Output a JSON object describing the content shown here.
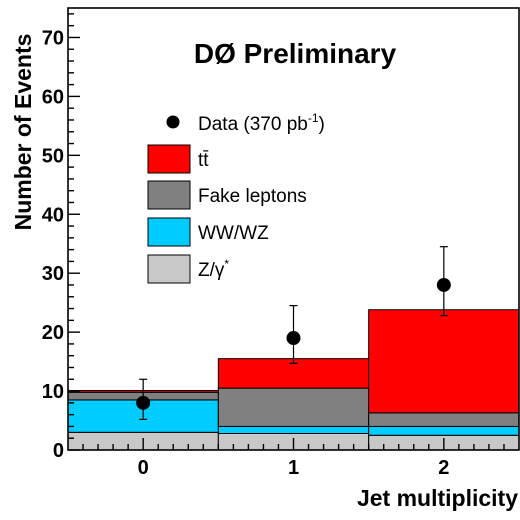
{
  "chart_data": {
    "type": "bar",
    "title": "DØ Preliminary",
    "xlabel": "Jet multiplicity",
    "ylabel": "Number of Events",
    "x": [
      0,
      1,
      2
    ],
    "xlim": [
      -0.5,
      2.5
    ],
    "ylim": [
      0,
      75
    ],
    "xticks": [
      "0",
      "1",
      "2"
    ],
    "yticks": [
      "0",
      "10",
      "20",
      "30",
      "40",
      "50",
      "60",
      "70"
    ],
    "stacked": true,
    "series": [
      {
        "name": "Z/γ*",
        "color": "#c8c8c8",
        "values": [
          3.0,
          2.8,
          2.5
        ]
      },
      {
        "name": "WW/WZ",
        "color": "#00ccff",
        "values": [
          5.5,
          1.2,
          1.5
        ]
      },
      {
        "name": "Fake leptons",
        "color": "#808080",
        "values": [
          1.3,
          6.5,
          2.3
        ]
      },
      {
        "name": "tt̄",
        "color": "#ff0000",
        "values": [
          0.3,
          5.0,
          17.5
        ]
      }
    ],
    "data_points": {
      "name": "Data (370 pb-1)",
      "values": [
        8,
        19,
        28
      ],
      "err_up": [
        4.0,
        5.5,
        6.5
      ],
      "err_down": [
        2.8,
        4.3,
        5.2
      ]
    }
  },
  "legend": {
    "data_label": "Data (370 pb",
    "data_sup": "-1",
    "data_close": ")",
    "ttbar_label": "tt̄",
    "fake_label": "Fake leptons",
    "wwwz_label": "WW/WZ",
    "zgamma_label": "Z/γ",
    "zgamma_sup": "*"
  }
}
